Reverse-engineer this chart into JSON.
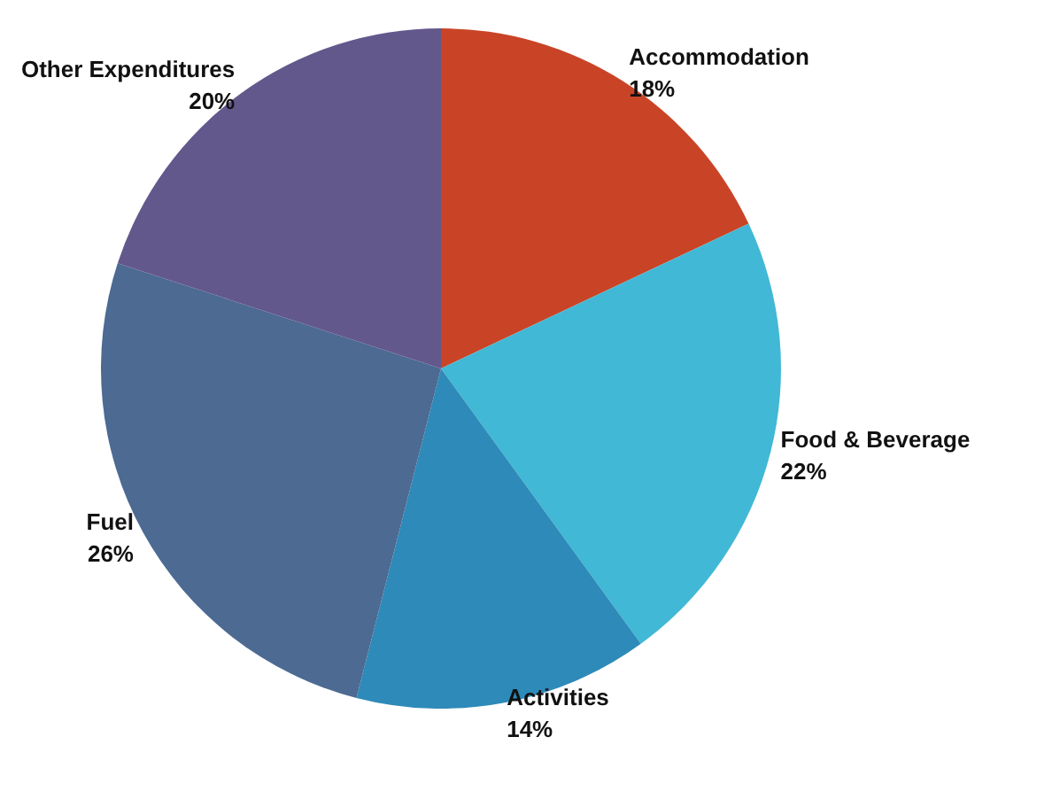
{
  "chart_data": {
    "type": "pie",
    "categories": [
      "Accommodation",
      "Food & Beverage",
      "Activities",
      "Fuel",
      "Other Expenditures"
    ],
    "values": [
      18,
      22,
      14,
      26,
      20
    ],
    "value_labels": [
      "18%",
      "22%",
      "14%",
      "26%",
      "20%"
    ],
    "colors": [
      "#c94427",
      "#41b8d5",
      "#2e8ab8",
      "#4c6a92",
      "#63588c"
    ],
    "legend": false
  }
}
